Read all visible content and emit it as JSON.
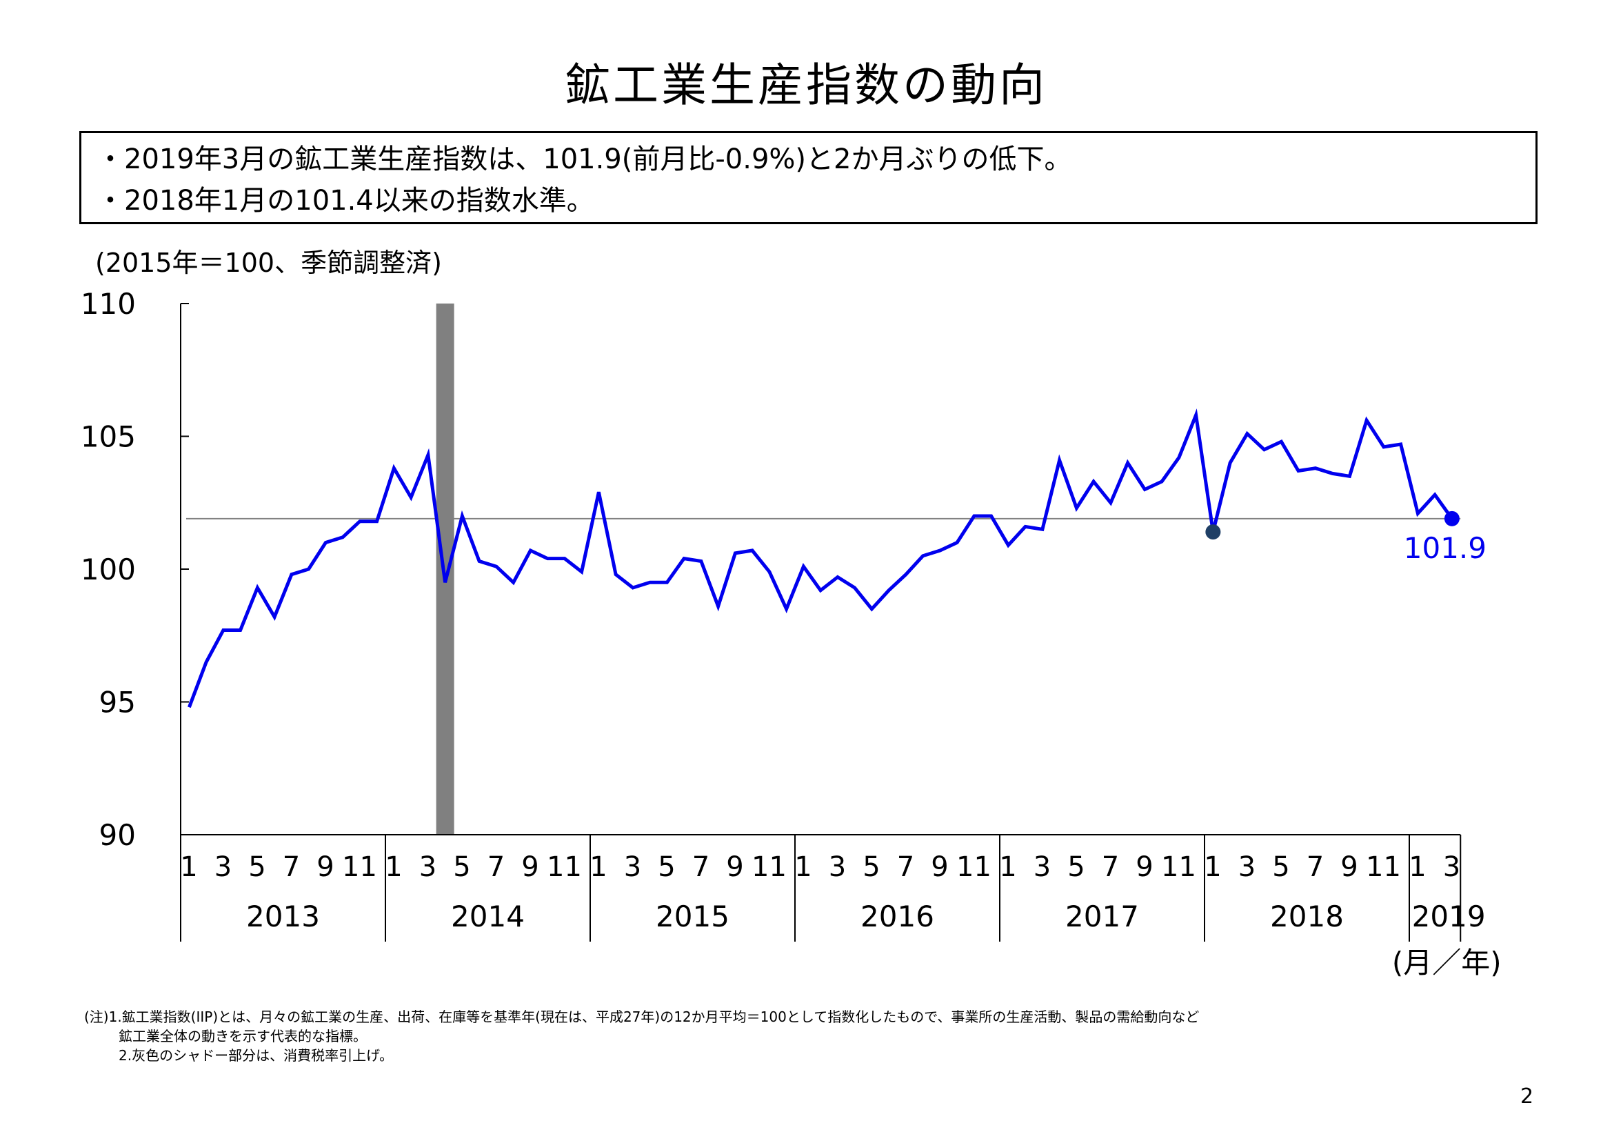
{
  "slide": {
    "title": "鉱工業生産指数の動向",
    "summary": [
      "・2019年3月の鉱工業生産指数は、101.9(前月比-0.9%)と2か月ぶりの低下。",
      "・2018年1月の101.4以来の指数水準。"
    ],
    "unit_note": "(2015年＝100、季節調整済)",
    "footnote": {
      "line1": "(注)1.鉱工業指数(IIP)とは、月々の鉱工業の生産、出荷、在庫等を基準年(現在は、平成27年)の12か月平均＝100として指数化したもので、事業所の生産活動、製品の需給動向など",
      "line2": "鉱工業全体の動きを示す代表的な指標。",
      "line3": "2.灰色のシャドー部分は、消費税率引上げ。"
    },
    "page_number": "2"
  },
  "chart_data": {
    "type": "line",
    "title": "",
    "xlabel": "(月／年)",
    "ylabel": "",
    "ylim": [
      90,
      110
    ],
    "yticks": [
      90,
      95,
      100,
      105,
      110
    ],
    "years": [
      2013,
      2014,
      2015,
      2016,
      2017,
      2018,
      2019
    ],
    "month_tick_labels": [
      "1",
      "3",
      "5",
      "7",
      "9",
      "11"
    ],
    "month_tick_labels_2019": [
      "1",
      "3"
    ],
    "x_start": "2013-01",
    "x_end": "2019-03",
    "series": [
      {
        "color": "#0000ee",
        "values": [
          94.8,
          96.5,
          97.7,
          97.7,
          99.3,
          98.2,
          99.8,
          100.0,
          101.0,
          101.2,
          101.8,
          101.8,
          103.8,
          102.7,
          104.3,
          99.5,
          102.0,
          100.3,
          100.1,
          99.5,
          100.7,
          100.4,
          100.4,
          99.9,
          102.9,
          99.8,
          99.3,
          99.5,
          99.5,
          100.4,
          100.3,
          98.6,
          100.6,
          100.7,
          99.9,
          98.5,
          100.1,
          99.2,
          99.7,
          99.3,
          98.5,
          99.2,
          99.8,
          100.5,
          100.7,
          101.0,
          102.0,
          102.0,
          100.9,
          101.6,
          101.5,
          104.1,
          102.3,
          103.3,
          102.5,
          104.0,
          103.0,
          103.3,
          104.2,
          105.8,
          101.4,
          104.0,
          105.1,
          104.5,
          104.8,
          103.7,
          103.8,
          103.6,
          103.5,
          105.6,
          104.6,
          104.7,
          102.1,
          102.8,
          101.9
        ]
      }
    ],
    "reference_line": 101.9,
    "highlighted_points": [
      {
        "period": "2018-01",
        "value": 101.4,
        "color": "#1f3f66"
      },
      {
        "period": "2019-03",
        "value": 101.9,
        "color": "#0000ee"
      }
    ],
    "end_label": "101.9",
    "shaded_period": {
      "month": "2014-04",
      "note": "消費税率引上げ",
      "color": "#808080"
    },
    "grid": false,
    "legend": "none"
  }
}
